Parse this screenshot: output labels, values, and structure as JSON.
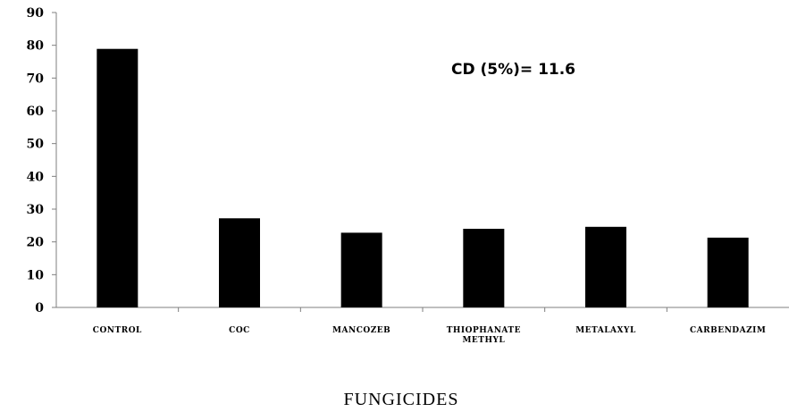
{
  "chart_data": {
    "type": "bar",
    "categories": [
      "CONTROL",
      "COC",
      "MANCOZEB",
      "THIOPHANATE METHYL",
      "METALAXYL",
      "CARBENDAZIM"
    ],
    "category_lines": [
      [
        "CONTROL"
      ],
      [
        "COC"
      ],
      [
        "MANCOZEB"
      ],
      [
        "THIOPHANATE",
        "METHYL"
      ],
      [
        "METALAXYL"
      ],
      [
        "CARBENDAZIM"
      ]
    ],
    "values": [
      78.9,
      27.2,
      22.8,
      24.0,
      24.6,
      21.3
    ],
    "title": "",
    "xlabel": "FUNGICIDES",
    "ylabel": "",
    "ylim": [
      0,
      90
    ],
    "yticks": [
      0,
      10,
      20,
      30,
      40,
      50,
      60,
      70,
      80,
      90
    ],
    "annotation": "CD (5%)= 11.6",
    "grid": false,
    "bar_color": "#000000"
  }
}
